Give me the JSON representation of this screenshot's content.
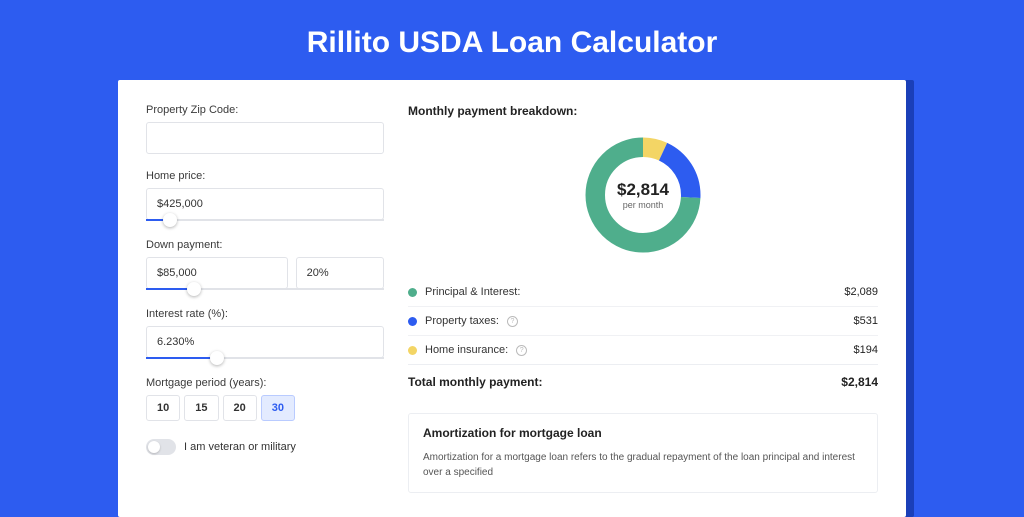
{
  "page_title": "Rillito USDA Loan Calculator",
  "colors": {
    "page_bg": "#2d5cf0",
    "card_shadow": "#1a3fb8",
    "principal": "#4fae8c",
    "taxes": "#2d5cf0",
    "insurance": "#f3d565"
  },
  "form": {
    "zip_label": "Property Zip Code:",
    "zip_value": "",
    "home_price_label": "Home price:",
    "home_price_value": "$425,000",
    "home_price_slider_pct": 10,
    "down_payment_label": "Down payment:",
    "down_payment_value": "$85,000",
    "down_payment_pct_value": "20%",
    "down_payment_slider_pct": 20,
    "interest_label": "Interest rate (%):",
    "interest_value": "6.230%",
    "interest_slider_pct": 30,
    "period_label": "Mortgage period (years):",
    "period_options": [
      "10",
      "15",
      "20",
      "30"
    ],
    "period_active_index": 3,
    "veteran_label": "I am veteran or military",
    "veteran_on": false
  },
  "breakdown": {
    "heading": "Monthly payment breakdown:",
    "donut": {
      "amount": "$2,814",
      "sub": "per month",
      "segments": [
        {
          "key": "principal",
          "label": "Principal & Interest:",
          "value": "$2,089",
          "pct": 74.2,
          "color": "#4fae8c",
          "info": false
        },
        {
          "key": "taxes",
          "label": "Property taxes:",
          "value": "$531",
          "pct": 18.9,
          "color": "#2d5cf0",
          "info": true
        },
        {
          "key": "insurance",
          "label": "Home insurance:",
          "value": "$194",
          "pct": 6.9,
          "color": "#f3d565",
          "info": true
        }
      ]
    },
    "total_label": "Total monthly payment:",
    "total_value": "$2,814"
  },
  "amort": {
    "title": "Amortization for mortgage loan",
    "text": "Amortization for a mortgage loan refers to the gradual repayment of the loan principal and interest over a specified"
  }
}
